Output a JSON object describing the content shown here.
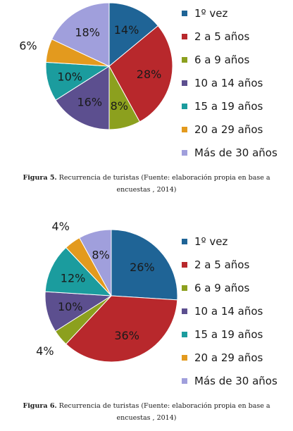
{
  "colors": [
    "#1f6496",
    "#b8282c",
    "#8ca01e",
    "#5c4f8f",
    "#1b9c9e",
    "#e39a1e",
    "#a09fdc"
  ],
  "chart_data": [
    {
      "type": "pie",
      "title": "",
      "legend_position": "right",
      "categories": [
        "1º vez",
        "2 a 5 años",
        "6 a 9 años",
        "10 a 14 años",
        "15 a 19 años",
        "20 a 29 años",
        "Más de 30 años"
      ],
      "values": [
        14,
        28,
        8,
        16,
        10,
        6,
        18
      ],
      "value_labels": [
        "14%",
        "28%",
        "8%",
        "16%",
        "10%",
        "6%",
        "18%"
      ],
      "caption_prefix": "Figura 5.",
      "caption_text": "Recurrencia de turistas (Fuente: elaboración propia en base a encuestas , 2014)"
    },
    {
      "type": "pie",
      "title": "",
      "legend_position": "right",
      "categories": [
        "1º vez",
        "2 a 5 años",
        "6 a 9 años",
        "10 a 14 años",
        "15 a 19 años",
        "20 a 29 años",
        "Más de 30 años"
      ],
      "values": [
        26,
        36,
        4,
        10,
        12,
        4,
        8
      ],
      "value_labels": [
        "26%",
        "36%",
        "4%",
        "10%",
        "12%",
        "4%",
        "8%"
      ],
      "caption_prefix": "Figura 6.",
      "caption_text": "Recurrencia de turistas (Fuente: elaboración propia en base a encuestas , 2014)"
    }
  ]
}
